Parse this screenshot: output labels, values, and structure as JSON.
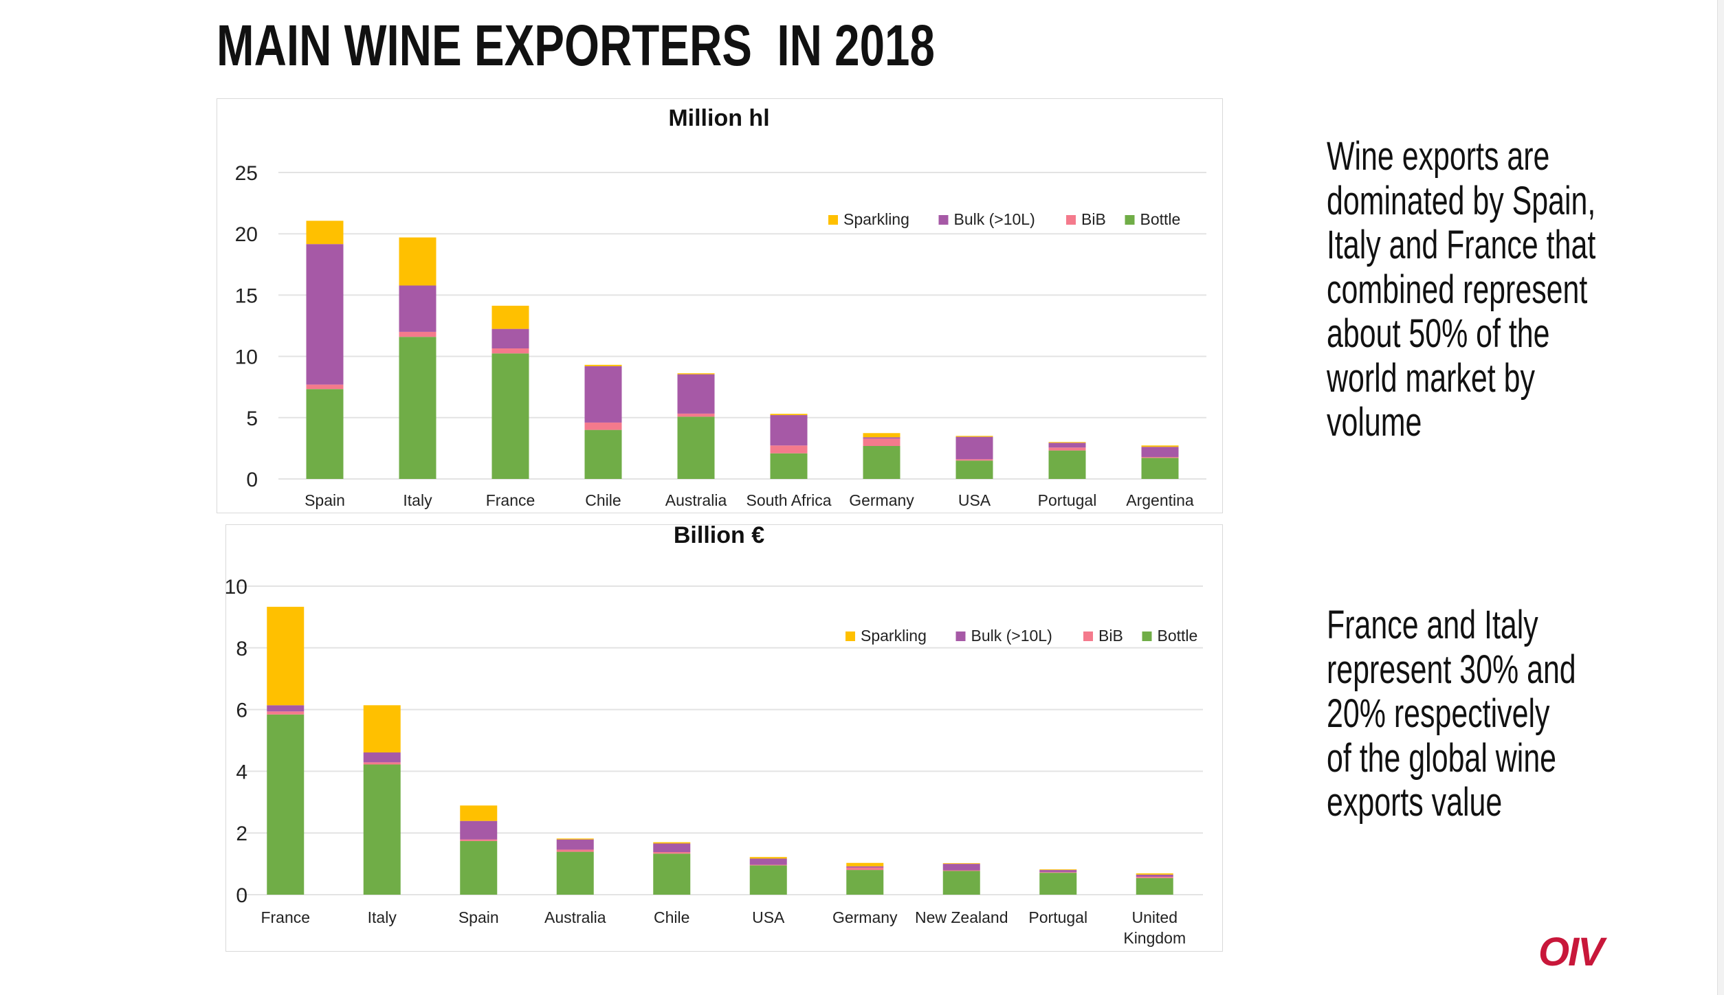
{
  "title": "MAIN WINE EXPORTERS  IN 2018",
  "side_text": {
    "block1": [
      "Wine exports are",
      "dominated by Spain,",
      "Italy and France that",
      "combined represent",
      "about 50% of the",
      "world market by",
      "volume"
    ],
    "block2": [
      "France and Italy",
      "represent 30% and",
      "20% respectively",
      "of the global wine",
      "exports value"
    ]
  },
  "logo": "OIV",
  "colors": {
    "Sparkling": "#ffc000",
    "Bulk (>10L)": "#a659a6",
    "BiB": "#f47a8c",
    "Bottle": "#70ad47"
  },
  "chart_data": [
    {
      "type": "bar",
      "stacked": true,
      "title": "Million hl",
      "ylim": [
        0,
        25
      ],
      "yticks": [
        0,
        5,
        10,
        15,
        20,
        25
      ],
      "legend": [
        "Sparkling",
        "Bulk (>10L)",
        "BiB",
        "Bottle"
      ],
      "legend_position": "top-right",
      "grid": true,
      "categories": [
        "Spain",
        "Italy",
        "France",
        "Chile",
        "Australia",
        "South Africa",
        "Germany",
        "USA",
        "Portugal",
        "Argentina"
      ],
      "series": [
        {
          "name": "Bottle",
          "values": [
            7.33,
            11.59,
            10.24,
            4.0,
            5.08,
            2.09,
            2.69,
            1.5,
            2.32,
            1.72
          ]
        },
        {
          "name": "BiB",
          "values": [
            0.37,
            0.41,
            0.41,
            0.6,
            0.25,
            0.64,
            0.6,
            0.11,
            0.24,
            0.07
          ]
        },
        {
          "name": "Bulk (>10L)",
          "values": [
            11.46,
            3.78,
            1.59,
            4.6,
            3.21,
            2.48,
            0.11,
            1.83,
            0.39,
            0.83
          ]
        },
        {
          "name": "Sparkling",
          "values": [
            1.9,
            3.92,
            1.89,
            0.11,
            0.08,
            0.1,
            0.34,
            0.07,
            0.06,
            0.11
          ]
        }
      ]
    },
    {
      "type": "bar",
      "stacked": true,
      "title": "Billion €",
      "ylim": [
        0,
        10
      ],
      "yticks": [
        0,
        2,
        4,
        6,
        8,
        10
      ],
      "legend": [
        "Sparkling",
        "Bulk (>10L)",
        "BiB",
        "Bottle"
      ],
      "legend_position": "top-right",
      "grid": true,
      "categories": [
        "France",
        "Italy",
        "Spain",
        "Australia",
        "Chile",
        "USA",
        "Germany",
        "New Zealand",
        "Portugal",
        "United Kingdom"
      ],
      "series": [
        {
          "name": "Bottle",
          "values": [
            5.84,
            4.22,
            1.74,
            1.39,
            1.33,
            0.95,
            0.8,
            0.77,
            0.71,
            0.54
          ]
        },
        {
          "name": "BiB",
          "values": [
            0.1,
            0.07,
            0.05,
            0.07,
            0.05,
            0.02,
            0.08,
            0.02,
            0.02,
            0.04
          ]
        },
        {
          "name": "Bulk (>10L)",
          "values": [
            0.2,
            0.32,
            0.6,
            0.33,
            0.28,
            0.2,
            0.04,
            0.21,
            0.07,
            0.07
          ]
        },
        {
          "name": "Sparkling",
          "values": [
            3.19,
            1.53,
            0.5,
            0.03,
            0.04,
            0.05,
            0.11,
            0.02,
            0.02,
            0.04
          ]
        }
      ]
    }
  ]
}
